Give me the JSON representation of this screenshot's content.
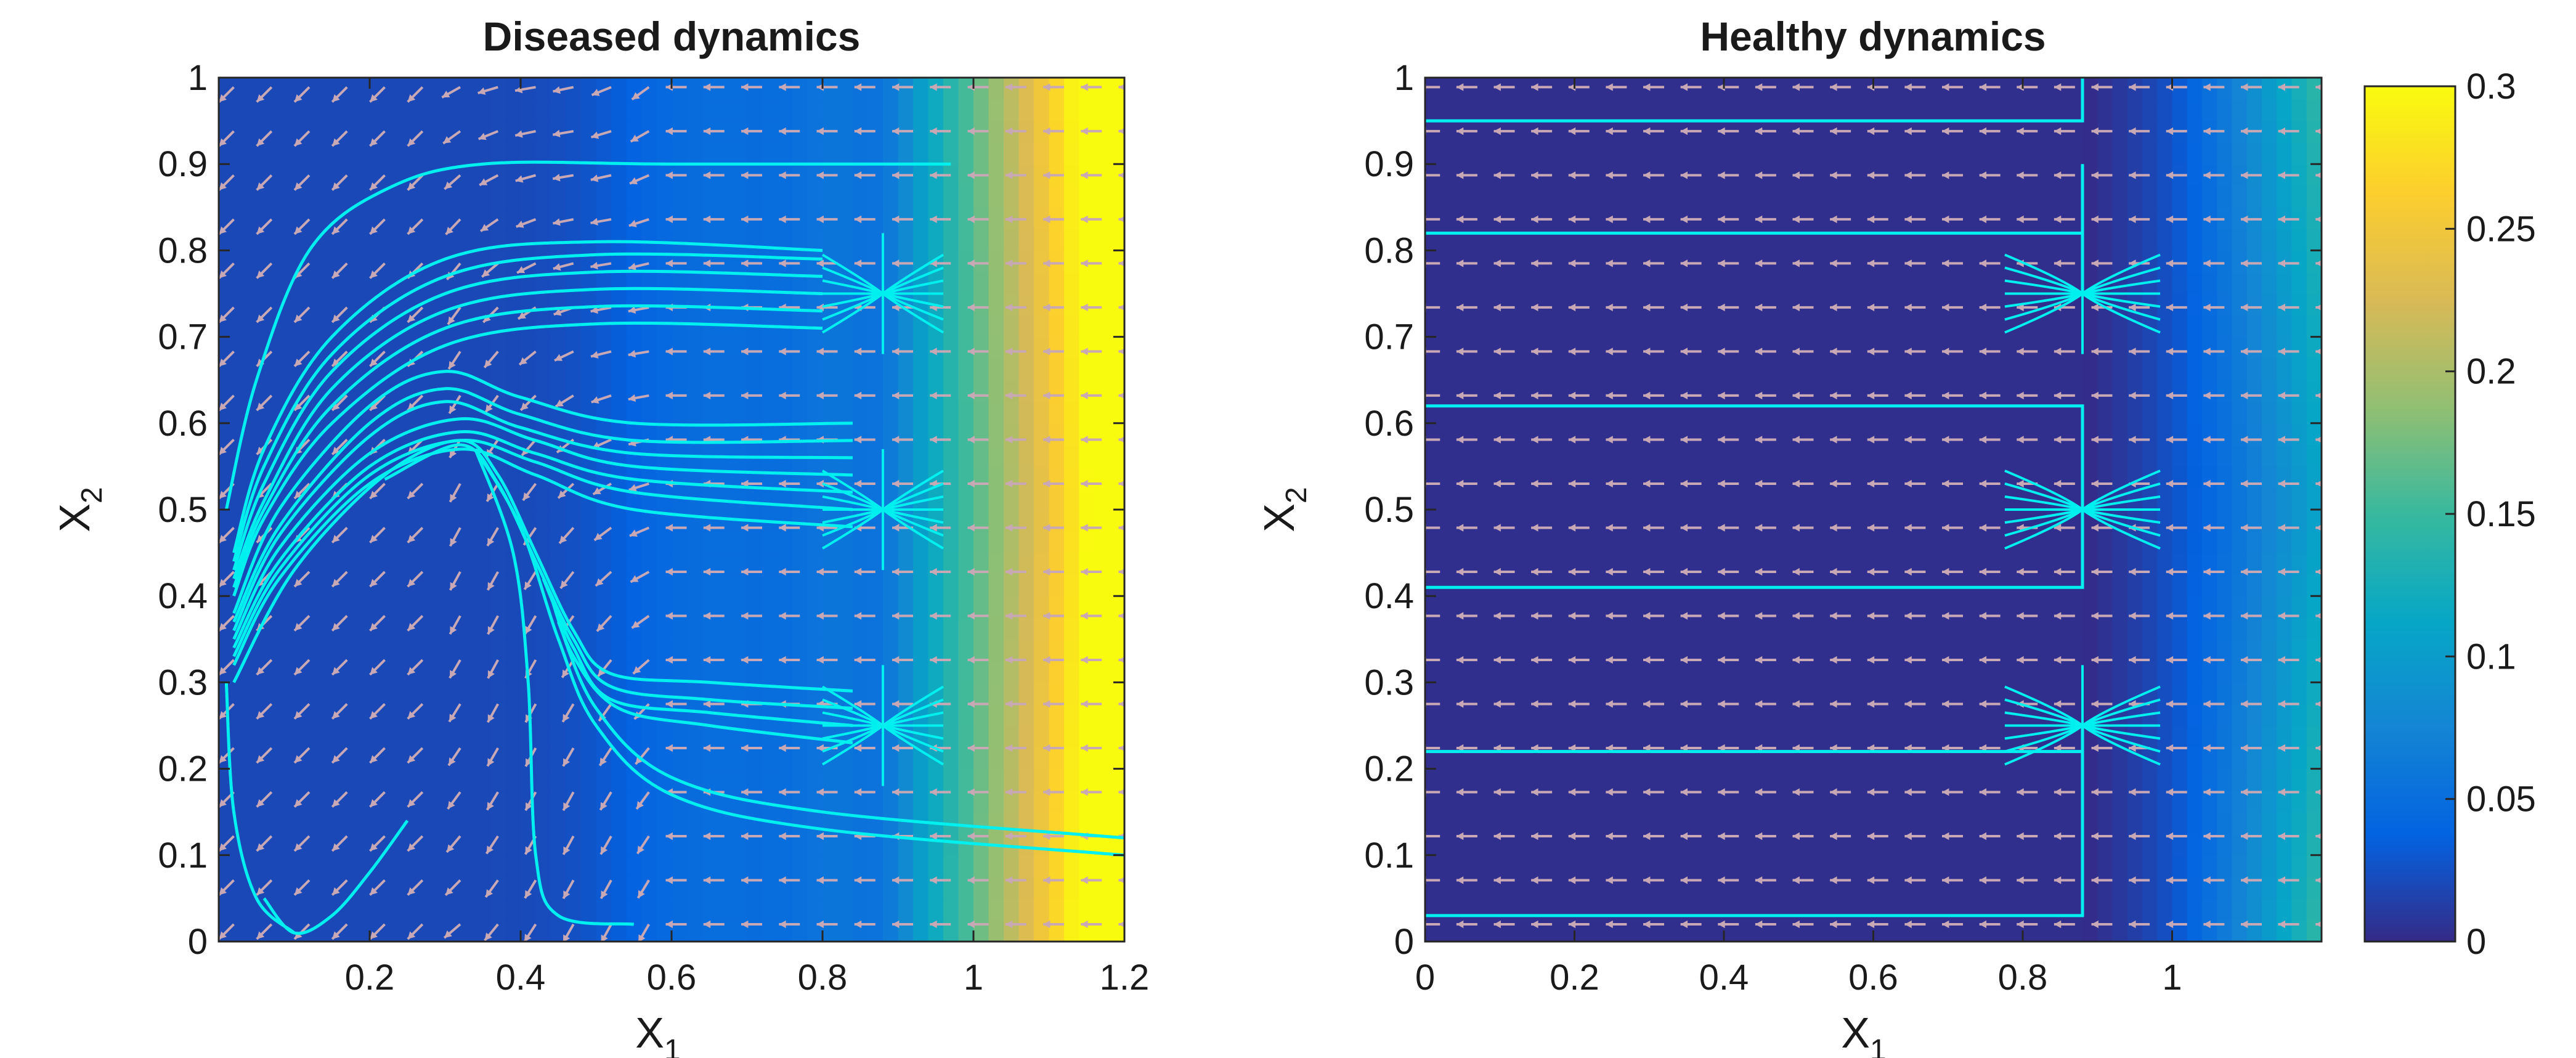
{
  "chart_data": [
    {
      "type": "heatmap",
      "subtype": "phase-portrait-with-streamlines",
      "title": "Diseased dynamics",
      "xlabel": "X",
      "xlabel_sub": "1",
      "ylabel": "X",
      "ylabel_sub": "2",
      "xlim": [
        0,
        1.2
      ],
      "ylim": [
        0,
        1
      ],
      "xticks": [
        0.2,
        0.4,
        0.6,
        0.8,
        1,
        1.2
      ],
      "xtick_labels": [
        "0.2",
        "0.4",
        "0.6",
        "0.8",
        "1",
        "1.2"
      ],
      "yticks": [
        0,
        0.1,
        0.2,
        0.3,
        0.4,
        0.5,
        0.6,
        0.7,
        0.8,
        0.9,
        1
      ],
      "ytick_labels": [
        "0",
        "0.1",
        "0.2",
        "0.3",
        "0.4",
        "0.5",
        "0.6",
        "0.7",
        "0.8",
        "0.9",
        "1"
      ],
      "color_scale_range": [
        0,
        0.3
      ],
      "stable_points": [
        [
          0.88,
          0.75
        ],
        [
          0.88,
          0.5
        ],
        [
          0.88,
          0.25
        ]
      ],
      "streamlines": [
        [
          [
            0.97,
            0.9
          ],
          [
            0.6,
            0.9
          ],
          [
            0.35,
            0.9
          ],
          [
            0.22,
            0.87
          ],
          [
            0.12,
            0.8
          ],
          [
            0.05,
            0.65
          ],
          [
            0.01,
            0.5
          ]
        ],
        [
          [
            0.8,
            0.8
          ],
          [
            0.5,
            0.81
          ],
          [
            0.3,
            0.79
          ],
          [
            0.15,
            0.7
          ],
          [
            0.06,
            0.57
          ],
          [
            0.02,
            0.45
          ]
        ],
        [
          [
            0.8,
            0.79
          ],
          [
            0.5,
            0.795
          ],
          [
            0.3,
            0.77
          ],
          [
            0.15,
            0.68
          ],
          [
            0.06,
            0.55
          ],
          [
            0.02,
            0.44
          ]
        ],
        [
          [
            0.8,
            0.77
          ],
          [
            0.5,
            0.775
          ],
          [
            0.3,
            0.75
          ],
          [
            0.15,
            0.66
          ],
          [
            0.06,
            0.53
          ],
          [
            0.02,
            0.43
          ]
        ],
        [
          [
            0.8,
            0.75
          ],
          [
            0.5,
            0.755
          ],
          [
            0.3,
            0.73
          ],
          [
            0.15,
            0.64
          ],
          [
            0.06,
            0.51
          ],
          [
            0.02,
            0.42
          ]
        ],
        [
          [
            0.8,
            0.73
          ],
          [
            0.5,
            0.735
          ],
          [
            0.3,
            0.71
          ],
          [
            0.15,
            0.62
          ],
          [
            0.06,
            0.5
          ],
          [
            0.02,
            0.41
          ]
        ],
        [
          [
            0.8,
            0.71
          ],
          [
            0.5,
            0.715
          ],
          [
            0.3,
            0.69
          ],
          [
            0.15,
            0.6
          ],
          [
            0.06,
            0.49
          ],
          [
            0.02,
            0.4
          ]
        ],
        [
          [
            0.84,
            0.6
          ],
          [
            0.55,
            0.6
          ],
          [
            0.4,
            0.63
          ],
          [
            0.3,
            0.66
          ],
          [
            0.2,
            0.62
          ],
          [
            0.08,
            0.5
          ],
          [
            0.02,
            0.38
          ]
        ],
        [
          [
            0.84,
            0.58
          ],
          [
            0.55,
            0.58
          ],
          [
            0.4,
            0.61
          ],
          [
            0.3,
            0.64
          ],
          [
            0.2,
            0.6
          ],
          [
            0.08,
            0.48
          ],
          [
            0.02,
            0.37
          ]
        ],
        [
          [
            0.84,
            0.56
          ],
          [
            0.55,
            0.565
          ],
          [
            0.4,
            0.595
          ],
          [
            0.3,
            0.625
          ],
          [
            0.2,
            0.585
          ],
          [
            0.08,
            0.47
          ],
          [
            0.02,
            0.36
          ]
        ],
        [
          [
            0.84,
            0.54
          ],
          [
            0.55,
            0.55
          ],
          [
            0.42,
            0.58
          ],
          [
            0.32,
            0.605
          ],
          [
            0.2,
            0.565
          ],
          [
            0.08,
            0.455
          ],
          [
            0.02,
            0.35
          ]
        ],
        [
          [
            0.84,
            0.52
          ],
          [
            0.55,
            0.535
          ],
          [
            0.42,
            0.565
          ],
          [
            0.32,
            0.59
          ],
          [
            0.2,
            0.55
          ],
          [
            0.08,
            0.44
          ],
          [
            0.02,
            0.34
          ]
        ],
        [
          [
            0.84,
            0.5
          ],
          [
            0.55,
            0.52
          ],
          [
            0.42,
            0.555
          ],
          [
            0.32,
            0.58
          ],
          [
            0.2,
            0.54
          ],
          [
            0.08,
            0.43
          ],
          [
            0.02,
            0.33
          ]
        ],
        [
          [
            0.84,
            0.48
          ],
          [
            0.55,
            0.5
          ],
          [
            0.42,
            0.54
          ],
          [
            0.32,
            0.57
          ],
          [
            0.2,
            0.53
          ],
          [
            0.08,
            0.42
          ],
          [
            0.02,
            0.32
          ]
        ],
        [
          [
            0.84,
            0.29
          ],
          [
            0.65,
            0.3
          ],
          [
            0.52,
            0.31
          ],
          [
            0.47,
            0.36
          ],
          [
            0.42,
            0.45
          ],
          [
            0.37,
            0.54
          ],
          [
            0.32,
            0.58
          ],
          [
            0.22,
            0.54
          ],
          [
            0.1,
            0.43
          ],
          [
            0.02,
            0.3
          ]
        ],
        [
          [
            0.84,
            0.27
          ],
          [
            0.65,
            0.28
          ],
          [
            0.52,
            0.295
          ],
          [
            0.47,
            0.35
          ],
          [
            0.42,
            0.44
          ],
          [
            0.37,
            0.53
          ],
          [
            0.32,
            0.575
          ],
          [
            0.22,
            0.535
          ]
        ],
        [
          [
            0.84,
            0.25
          ],
          [
            0.65,
            0.265
          ],
          [
            0.52,
            0.28
          ],
          [
            0.47,
            0.34
          ],
          [
            0.43,
            0.42
          ]
        ],
        [
          [
            0.84,
            0.23
          ],
          [
            0.65,
            0.25
          ],
          [
            0.53,
            0.27
          ],
          [
            0.47,
            0.33
          ],
          [
            0.44,
            0.4
          ]
        ],
        [
          [
            1.2,
            0.1
          ],
          [
            0.8,
            0.13
          ],
          [
            0.6,
            0.17
          ],
          [
            0.5,
            0.25
          ],
          [
            0.45,
            0.35
          ],
          [
            0.4,
            0.48
          ],
          [
            0.34,
            0.57
          ]
        ],
        [
          [
            1.2,
            0.12
          ],
          [
            0.8,
            0.15
          ],
          [
            0.6,
            0.19
          ],
          [
            0.5,
            0.27
          ],
          [
            0.45,
            0.37
          ]
        ],
        [
          [
            0.55,
            0.02
          ],
          [
            0.45,
            0.03
          ],
          [
            0.42,
            0.1
          ],
          [
            0.41,
            0.3
          ],
          [
            0.39,
            0.45
          ],
          [
            0.34,
            0.57
          ]
        ],
        [
          [
            0.1,
            0.01
          ],
          [
            0.05,
            0.05
          ],
          [
            0.02,
            0.15
          ],
          [
            0.01,
            0.3
          ]
        ],
        [
          [
            0.25,
            0.14
          ],
          [
            0.2,
            0.08
          ],
          [
            0.15,
            0.03
          ],
          [
            0.1,
            0.01
          ],
          [
            0.06,
            0.05
          ]
        ]
      ]
    },
    {
      "type": "heatmap",
      "subtype": "phase-portrait-with-streamlines",
      "title": "Healthy dynamics",
      "xlabel": "X",
      "xlabel_sub": "1",
      "ylabel": "X",
      "ylabel_sub": "2",
      "xlim": [
        0,
        1.2
      ],
      "ylim": [
        0,
        1
      ],
      "xticks": [
        0,
        0.2,
        0.4,
        0.6,
        0.8,
        1
      ],
      "xtick_labels": [
        "0",
        "0.2",
        "0.4",
        "0.6",
        "0.8",
        "1"
      ],
      "yticks": [
        0,
        0.1,
        0.2,
        0.3,
        0.4,
        0.5,
        0.6,
        0.7,
        0.8,
        0.9,
        1
      ],
      "ytick_labels": [
        "0",
        "0.1",
        "0.2",
        "0.3",
        "0.4",
        "0.5",
        "0.6",
        "0.7",
        "0.8",
        "0.9",
        "1"
      ],
      "color_scale_range": [
        0,
        0.3
      ],
      "stable_points": [
        [
          0.88,
          0.75
        ],
        [
          0.88,
          0.5
        ],
        [
          0.88,
          0.25
        ]
      ],
      "streamlines": [
        [
          [
            0,
            0.95
          ],
          [
            0.88,
            0.95
          ],
          [
            0.88,
            1
          ]
        ],
        [
          [
            0,
            0.82
          ],
          [
            0.88,
            0.82
          ],
          [
            0.88,
            0.75
          ]
        ],
        [
          [
            0,
            0.62
          ],
          [
            0.88,
            0.62
          ],
          [
            0.88,
            0.5
          ]
        ],
        [
          [
            0,
            0.41
          ],
          [
            0.88,
            0.41
          ],
          [
            0.88,
            0.5
          ]
        ],
        [
          [
            0,
            0.22
          ],
          [
            0.88,
            0.22
          ],
          [
            0.88,
            0.25
          ]
        ],
        [
          [
            0,
            0.03
          ],
          [
            0.88,
            0.03
          ],
          [
            0.88,
            0.25
          ]
        ],
        [
          [
            0.88,
            0.9
          ],
          [
            0.88,
            0.75
          ]
        ]
      ]
    }
  ],
  "colorbar": {
    "min": 0,
    "max": 0.3,
    "tick_values": [
      0,
      0.05,
      0.1,
      0.15,
      0.2,
      0.25,
      0.3
    ],
    "tick_labels": [
      "0",
      "0.05",
      "0.1",
      "0.15",
      "0.2",
      "0.25",
      "0.3"
    ],
    "colors": [
      "#352a87",
      "#0363e1",
      "#1485d4",
      "#06a7c6",
      "#38b99e",
      "#92bf73",
      "#d9ba56",
      "#fcce2e",
      "#f9fb0e"
    ]
  },
  "colors": {
    "streamline": "#00f0f0",
    "arrow": "#c8a8b4"
  }
}
